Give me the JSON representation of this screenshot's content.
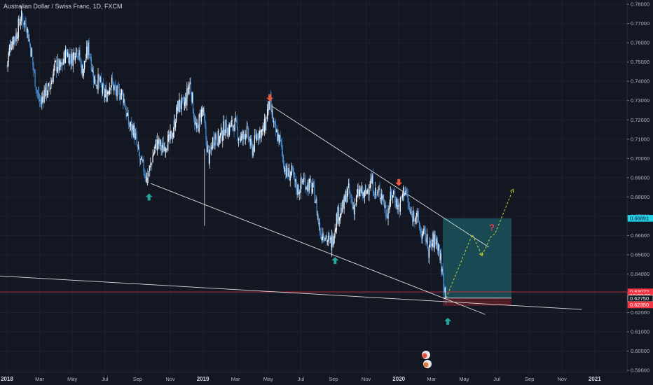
{
  "header": {
    "symbol_title": "Australian Dollar / Swiss Franc, 1D, FXCM"
  },
  "chart_data": {
    "type": "candlestick",
    "title": "Australian Dollar / Swiss Franc, 1D, FXCM",
    "y_axis_position": "right",
    "ylim": [
      0.5833,
      0.7815
    ],
    "y_ticks": [
      "0.59000",
      "0.60000",
      "0.61000",
      "0.62000",
      "0.63000",
      "0.64000",
      "0.65000",
      "0.66000",
      "0.67000",
      "0.68000",
      "0.69000",
      "0.70000",
      "0.71000",
      "0.72000",
      "0.73000",
      "0.74000",
      "0.75000",
      "0.76000",
      "0.77000",
      "0.78000"
    ],
    "x_ticks": [
      {
        "label": "2018",
        "t": 0
      },
      {
        "label": "Mar",
        "t": 2
      },
      {
        "label": "May",
        "t": 4
      },
      {
        "label": "Jul",
        "t": 6
      },
      {
        "label": "Sep",
        "t": 8
      },
      {
        "label": "Nov",
        "t": 10
      },
      {
        "label": "2019",
        "t": 12
      },
      {
        "label": "Mar",
        "t": 14
      },
      {
        "label": "May",
        "t": 16
      },
      {
        "label": "Jul",
        "t": 18
      },
      {
        "label": "Sep",
        "t": 20
      },
      {
        "label": "Nov",
        "t": 22
      },
      {
        "label": "2020",
        "t": 24
      },
      {
        "label": "Mar",
        "t": 26
      },
      {
        "label": "May",
        "t": 28
      },
      {
        "label": "Jul",
        "t": 30
      },
      {
        "label": "Sep",
        "t": 32
      },
      {
        "label": "Nov",
        "t": 34
      },
      {
        "label": "2021",
        "t": 36
      }
    ],
    "price_path": [
      [
        0.0,
        0.748
      ],
      [
        0.4,
        0.764
      ],
      [
        0.8,
        0.77
      ],
      [
        1.2,
        0.772
      ],
      [
        1.6,
        0.745
      ],
      [
        2.1,
        0.728
      ],
      [
        2.6,
        0.739
      ],
      [
        3.1,
        0.748
      ],
      [
        3.6,
        0.752
      ],
      [
        4.2,
        0.756
      ],
      [
        4.6,
        0.748
      ],
      [
        5.0,
        0.755
      ],
      [
        5.3,
        0.745
      ],
      [
        5.8,
        0.734
      ],
      [
        6.3,
        0.737
      ],
      [
        6.8,
        0.736
      ],
      [
        7.2,
        0.728
      ],
      [
        7.6,
        0.716
      ],
      [
        8.1,
        0.703
      ],
      [
        8.5,
        0.688
      ],
      [
        8.9,
        0.702
      ],
      [
        9.4,
        0.708
      ],
      [
        9.9,
        0.706
      ],
      [
        10.3,
        0.722
      ],
      [
        10.8,
        0.729
      ],
      [
        11.2,
        0.737
      ],
      [
        11.6,
        0.716
      ],
      [
        12.0,
        0.723
      ],
      [
        12.4,
        0.7
      ],
      [
        12.8,
        0.713
      ],
      [
        13.2,
        0.712
      ],
      [
        13.7,
        0.719
      ],
      [
        14.1,
        0.713
      ],
      [
        14.6,
        0.712
      ],
      [
        15.0,
        0.707
      ],
      [
        15.4,
        0.711
      ],
      [
        15.8,
        0.719
      ],
      [
        16.1,
        0.7265
      ],
      [
        16.5,
        0.714
      ],
      [
        16.9,
        0.7
      ],
      [
        17.3,
        0.691
      ],
      [
        17.6,
        0.688
      ],
      [
        18.0,
        0.685
      ],
      [
        18.5,
        0.689
      ],
      [
        18.8,
        0.68
      ],
      [
        19.2,
        0.664
      ],
      [
        19.6,
        0.656
      ],
      [
        20.0,
        0.661
      ],
      [
        20.5,
        0.676
      ],
      [
        20.9,
        0.681
      ],
      [
        21.2,
        0.677
      ],
      [
        21.6,
        0.68
      ],
      [
        22.0,
        0.684
      ],
      [
        22.4,
        0.686
      ],
      [
        22.8,
        0.682
      ],
      [
        23.2,
        0.674
      ],
      [
        23.6,
        0.68
      ],
      [
        24.0,
        0.677
      ],
      [
        24.4,
        0.682
      ],
      [
        24.8,
        0.671
      ],
      [
        25.2,
        0.667
      ],
      [
        25.6,
        0.659
      ],
      [
        25.8,
        0.651
      ],
      [
        26.1,
        0.66
      ],
      [
        26.3,
        0.656
      ],
      [
        26.6,
        0.645
      ],
      [
        26.9,
        0.631
      ]
    ],
    "wick_spikes": [
      {
        "t": 12.1,
        "low": 0.665,
        "high": 0.705
      },
      {
        "t": 19.9,
        "low": 0.649,
        "high": 0.663
      },
      {
        "t": 8.6,
        "low": 0.686,
        "high": 0.69
      }
    ],
    "trendlines": [
      {
        "name": "descending-resistance",
        "from": {
          "t": 16.15,
          "p": 0.7275
        },
        "to": {
          "t": 29.5,
          "p": 0.654
        },
        "color": "#ffffff"
      },
      {
        "name": "descending-support",
        "from": {
          "t": 8.8,
          "p": 0.687
        },
        "to": {
          "t": 29.3,
          "p": 0.619
        },
        "color": "#ffffff"
      },
      {
        "name": "long-support",
        "from": {
          "t": -0.5,
          "p": 0.639
        },
        "to": {
          "t": 35.2,
          "p": 0.6216
        },
        "color": "#ffffff"
      },
      {
        "name": "entry-line",
        "from": {
          "t": 26.7,
          "p": 0.6275
        },
        "to": {
          "t": 30.9,
          "p": 0.6275
        },
        "color": "#ffffff"
      }
    ],
    "horizontal_line": {
      "p": 0.6307,
      "color": "#f23645"
    },
    "position_box": {
      "t_start": 26.7,
      "t_end": 30.9,
      "entry": 0.6275,
      "target": 0.6689,
      "stop": 0.6235,
      "target_color": "#1e6b74",
      "stop_color": "#6b1f2a"
    },
    "projection_path": {
      "color": "#c7d42b",
      "points": [
        [
          26.9,
          0.6275
        ],
        [
          28.5,
          0.6605
        ],
        [
          29.1,
          0.6495
        ],
        [
          29.6,
          0.659
        ],
        [
          29.9,
          0.661
        ],
        [
          31.0,
          0.684
        ]
      ]
    },
    "arrows": [
      {
        "t": 8.7,
        "p": 0.68,
        "dir": "up",
        "color": "#26a69a"
      },
      {
        "t": 20.1,
        "p": 0.647,
        "dir": "up",
        "color": "#26a69a"
      },
      {
        "t": 27.0,
        "p": 0.6155,
        "dir": "up",
        "color": "#26a69a"
      },
      {
        "t": 16.1,
        "p": 0.7315,
        "dir": "down",
        "color": "#f05a3c"
      },
      {
        "t": 24.0,
        "p": 0.6875,
        "dir": "down",
        "color": "#f05a3c"
      }
    ],
    "question_mark": {
      "t": 29.7,
      "p": 0.6625,
      "text": "?",
      "color": "#f23645"
    },
    "price_labels": [
      {
        "text": "0.66891",
        "p": 0.6689,
        "bg": "#22d1e8",
        "fg": "#131722",
        "border": "#22d1e8"
      },
      {
        "text": "0.63072",
        "p": 0.6307,
        "bg": "#f23645",
        "fg": "#ffffff",
        "border": "#f23645"
      },
      {
        "text": "16:08:08",
        "p": 0.62885,
        "bg": "#f23645",
        "fg": "#ffffff",
        "border": "#f23645"
      },
      {
        "text": "0.62750",
        "p": 0.62735,
        "bg": "#131722",
        "fg": "#ffffff",
        "border": "#ffffff"
      },
      {
        "text": "0.62350",
        "p": 0.624,
        "bg": "#f23645",
        "fg": "#ffffff",
        "border": "#f23645"
      }
    ]
  }
}
